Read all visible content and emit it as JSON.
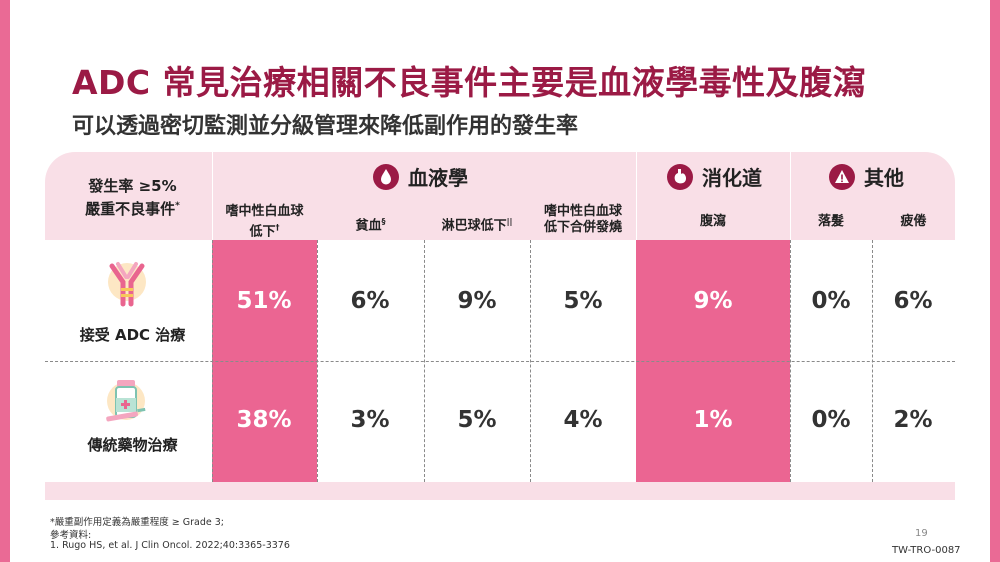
{
  "title": "ADC 常見治療相關不良事件主要是血液學毒性及腹瀉",
  "subtitle": "可以透過密切監測並分級管理來降低副作用的發生率",
  "row_header": {
    "line1": "發生率 ≥5%",
    "line2": "嚴重不良事件",
    "marker": "*"
  },
  "categories": {
    "hematology": "血液學",
    "digestive": "消化道",
    "other": "其他"
  },
  "columns": [
    {
      "line1": "嗜中性白血球",
      "line2": "低下",
      "sup": "†"
    },
    {
      "line1": "貧血",
      "line2": "",
      "sup": "§"
    },
    {
      "line1": "淋巴球低下",
      "line2": "",
      "sup": "||"
    },
    {
      "line1": "嗜中性白血球",
      "line2": "低下合併發燒",
      "sup": ""
    },
    {
      "line1": "腹瀉",
      "line2": "",
      "sup": ""
    },
    {
      "line1": "落髮",
      "line2": "",
      "sup": ""
    },
    {
      "line1": "疲倦",
      "line2": "",
      "sup": ""
    }
  ],
  "rows": [
    {
      "label": "接受 ADC 治療",
      "icon": "antibody-icon",
      "values": [
        "51%",
        "6%",
        "9%",
        "5%",
        "9%",
        "0%",
        "6%"
      ]
    },
    {
      "label": "傳統藥物治療",
      "icon": "medicine-vial-icon",
      "values": [
        "38%",
        "3%",
        "5%",
        "4%",
        "1%",
        "0%",
        "2%"
      ]
    }
  ],
  "footnotes": {
    "line1": "*嚴重副作用定義為嚴重程度 ≥ Grade 3;",
    "line2": "參考資料:",
    "line3": "1. Rugo HS, et al. J Clin Oncol. 2022;40:3365-3376"
  },
  "page_number": "19",
  "doc_code": "TW-TRO-0087",
  "colors": {
    "accent": "#9b1a45",
    "highlight": "#eb6592",
    "header_bg": "#f9dfe7",
    "side_bar": "#ea6a95"
  }
}
